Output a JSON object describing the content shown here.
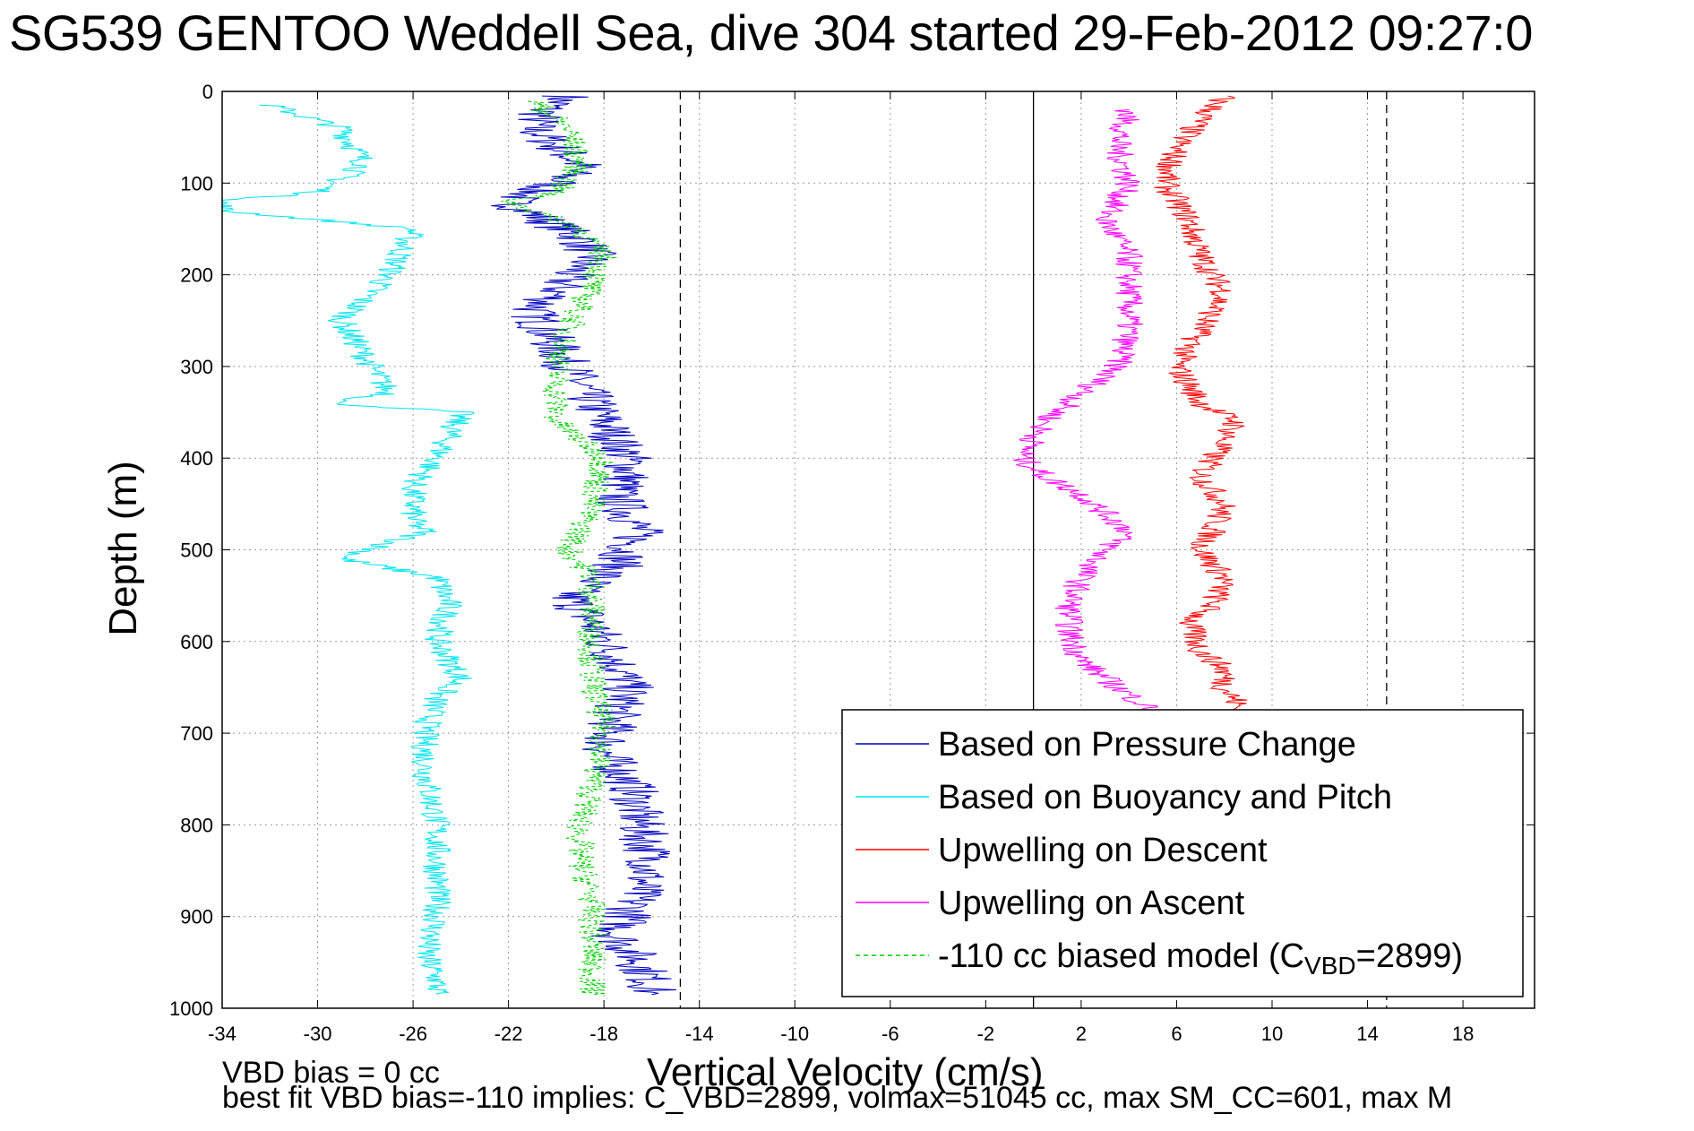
{
  "title": "SG539 GENTOO Weddell Sea, dive 304 started 29-Feb-2012 09:27:0",
  "footer": {
    "line1": "VBD bias = 0 cc",
    "line2": "best fit VBD bias=-110 implies: C_VBD=2899, volmax=51045 cc, max SM_CC=601, max M"
  },
  "chart_data": {
    "type": "line",
    "title": "SG539 GENTOO Weddell Sea, dive 304 started 29-Feb-2012 09:27:0",
    "xlabel": "Vertical Velocity (cm/s)",
    "ylabel": "Depth (m)",
    "xlim": [
      -34,
      21
    ],
    "ylim": [
      1000,
      0
    ],
    "y_inverted": true,
    "grid": true,
    "x_ticks": [
      -34,
      -30,
      -26,
      -22,
      -18,
      -14,
      -10,
      -6,
      -2,
      2,
      6,
      10,
      14,
      18
    ],
    "y_ticks": [
      0,
      100,
      200,
      300,
      400,
      500,
      600,
      700,
      800,
      900,
      1000
    ],
    "legend_position": "bottom-right",
    "reference_lines": [
      {
        "x": 0,
        "style": "solid",
        "color": "#000000"
      },
      {
        "x": -14.8,
        "style": "dashed",
        "color": "#000000"
      },
      {
        "x": 14.8,
        "style": "dashed",
        "color": "#000000"
      }
    ],
    "series": [
      {
        "name": "Based on Pressure Change",
        "color": "#0000c0",
        "style": "solid",
        "x": [
          -19.5,
          -20.5,
          -21,
          -20,
          -19,
          -20,
          -22,
          -20.5,
          -19,
          -18.5,
          -19.5,
          -20,
          -21,
          -20.5,
          -20,
          -19.5,
          -19,
          -18.5,
          -18,
          -17.5,
          -17,
          -17,
          -17.5,
          -17,
          -16.5,
          -17,
          -17.5,
          -19.5,
          -18.5,
          -17.5,
          -17,
          -17.5,
          -18,
          -16.8,
          -16.5,
          -16,
          -16.5,
          -17,
          -17.5,
          -16.5,
          -16,
          -16
        ],
        "y": [
          5,
          20,
          40,
          60,
          80,
          100,
          120,
          140,
          160,
          180,
          200,
          220,
          240,
          260,
          280,
          300,
          320,
          340,
          360,
          380,
          400,
          420,
          440,
          460,
          480,
          500,
          520,
          550,
          580,
          620,
          650,
          680,
          720,
          760,
          800,
          840,
          870,
          900,
          920,
          950,
          975,
          985
        ]
      },
      {
        "name": "Based on Buoyancy and Pitch",
        "color": "#00e5ee",
        "style": "solid",
        "x": [
          -32,
          -29,
          -28,
          -30,
          -34,
          -34,
          -26,
          -27,
          -29,
          -28,
          -27,
          -29.5,
          -24,
          -25,
          -26,
          -26,
          -25.5,
          -29,
          -25,
          -24.5,
          -25,
          -24,
          -25,
          -25.5,
          -25.5,
          -25,
          -25,
          -25,
          -25.5,
          -25,
          -25
        ],
        "y": [
          15,
          40,
          80,
          110,
          120,
          130,
          150,
          200,
          250,
          290,
          330,
          340,
          350,
          400,
          430,
          470,
          480,
          510,
          530,
          560,
          600,
          640,
          660,
          700,
          740,
          800,
          850,
          900,
          940,
          970,
          985
        ]
      },
      {
        "name": "Upwelling on Descent",
        "color": "#ff0000",
        "style": "solid",
        "x": [
          8,
          7,
          6,
          5.5,
          6.5,
          7,
          8,
          7,
          6,
          7,
          8.5,
          7.5,
          7,
          8,
          7.5,
          7,
          8,
          7.5,
          6.5,
          7,
          8,
          8,
          8.5,
          8.5
        ],
        "y": [
          5,
          30,
          60,
          100,
          140,
          180,
          220,
          260,
          300,
          340,
          360,
          400,
          420,
          450,
          480,
          500,
          530,
          560,
          580,
          610,
          630,
          650,
          665,
          675
        ]
      },
      {
        "name": "Upwelling on Ascent",
        "color": "#ff00ff",
        "style": "solid",
        "x": [
          4,
          3.5,
          4,
          3,
          4,
          4,
          4,
          3.5,
          2,
          0.5,
          -0.5,
          0.5,
          2,
          3,
          4,
          3,
          2,
          1.5,
          1.5,
          2,
          3.5,
          5
        ],
        "y": [
          20,
          60,
          100,
          140,
          180,
          220,
          260,
          300,
          330,
          360,
          400,
          420,
          440,
          460,
          480,
          500,
          530,
          560,
          590,
          620,
          650,
          675
        ]
      },
      {
        "name": "-110 cc biased model (C_VBD=2899)",
        "color": "#00cc00",
        "style": "dashed",
        "x": [
          -21,
          -19.5,
          -19,
          -20,
          -22,
          -19,
          -18,
          -18.5,
          -19.5,
          -20,
          -20,
          -20,
          -18,
          -18.5,
          -19,
          -19.5,
          -18.5,
          -18.5,
          -18.5,
          -18,
          -18.5,
          -19,
          -19,
          -18.5,
          -18.5,
          -18.5
        ],
        "y": [
          10,
          40,
          80,
          110,
          120,
          150,
          180,
          210,
          260,
          300,
          340,
          360,
          400,
          450,
          480,
          500,
          530,
          580,
          640,
          700,
          760,
          800,
          840,
          880,
          940,
          985
        ]
      }
    ]
  },
  "legend": [
    {
      "label": "Based on Pressure Change",
      "color": "#0000c0",
      "dashed": false
    },
    {
      "label": "Based on Buoyancy and Pitch",
      "color": "#00e5ee",
      "dashed": false
    },
    {
      "label": "Upwelling on Descent",
      "color": "#ff0000",
      "dashed": false
    },
    {
      "label": "Upwelling on Ascent",
      "color": "#ff00ff",
      "dashed": false
    },
    {
      "label": "-110 cc biased model (C",
      "sub": "VBD",
      "tail": "=2899)",
      "color": "#00cc00",
      "dashed": true
    }
  ]
}
